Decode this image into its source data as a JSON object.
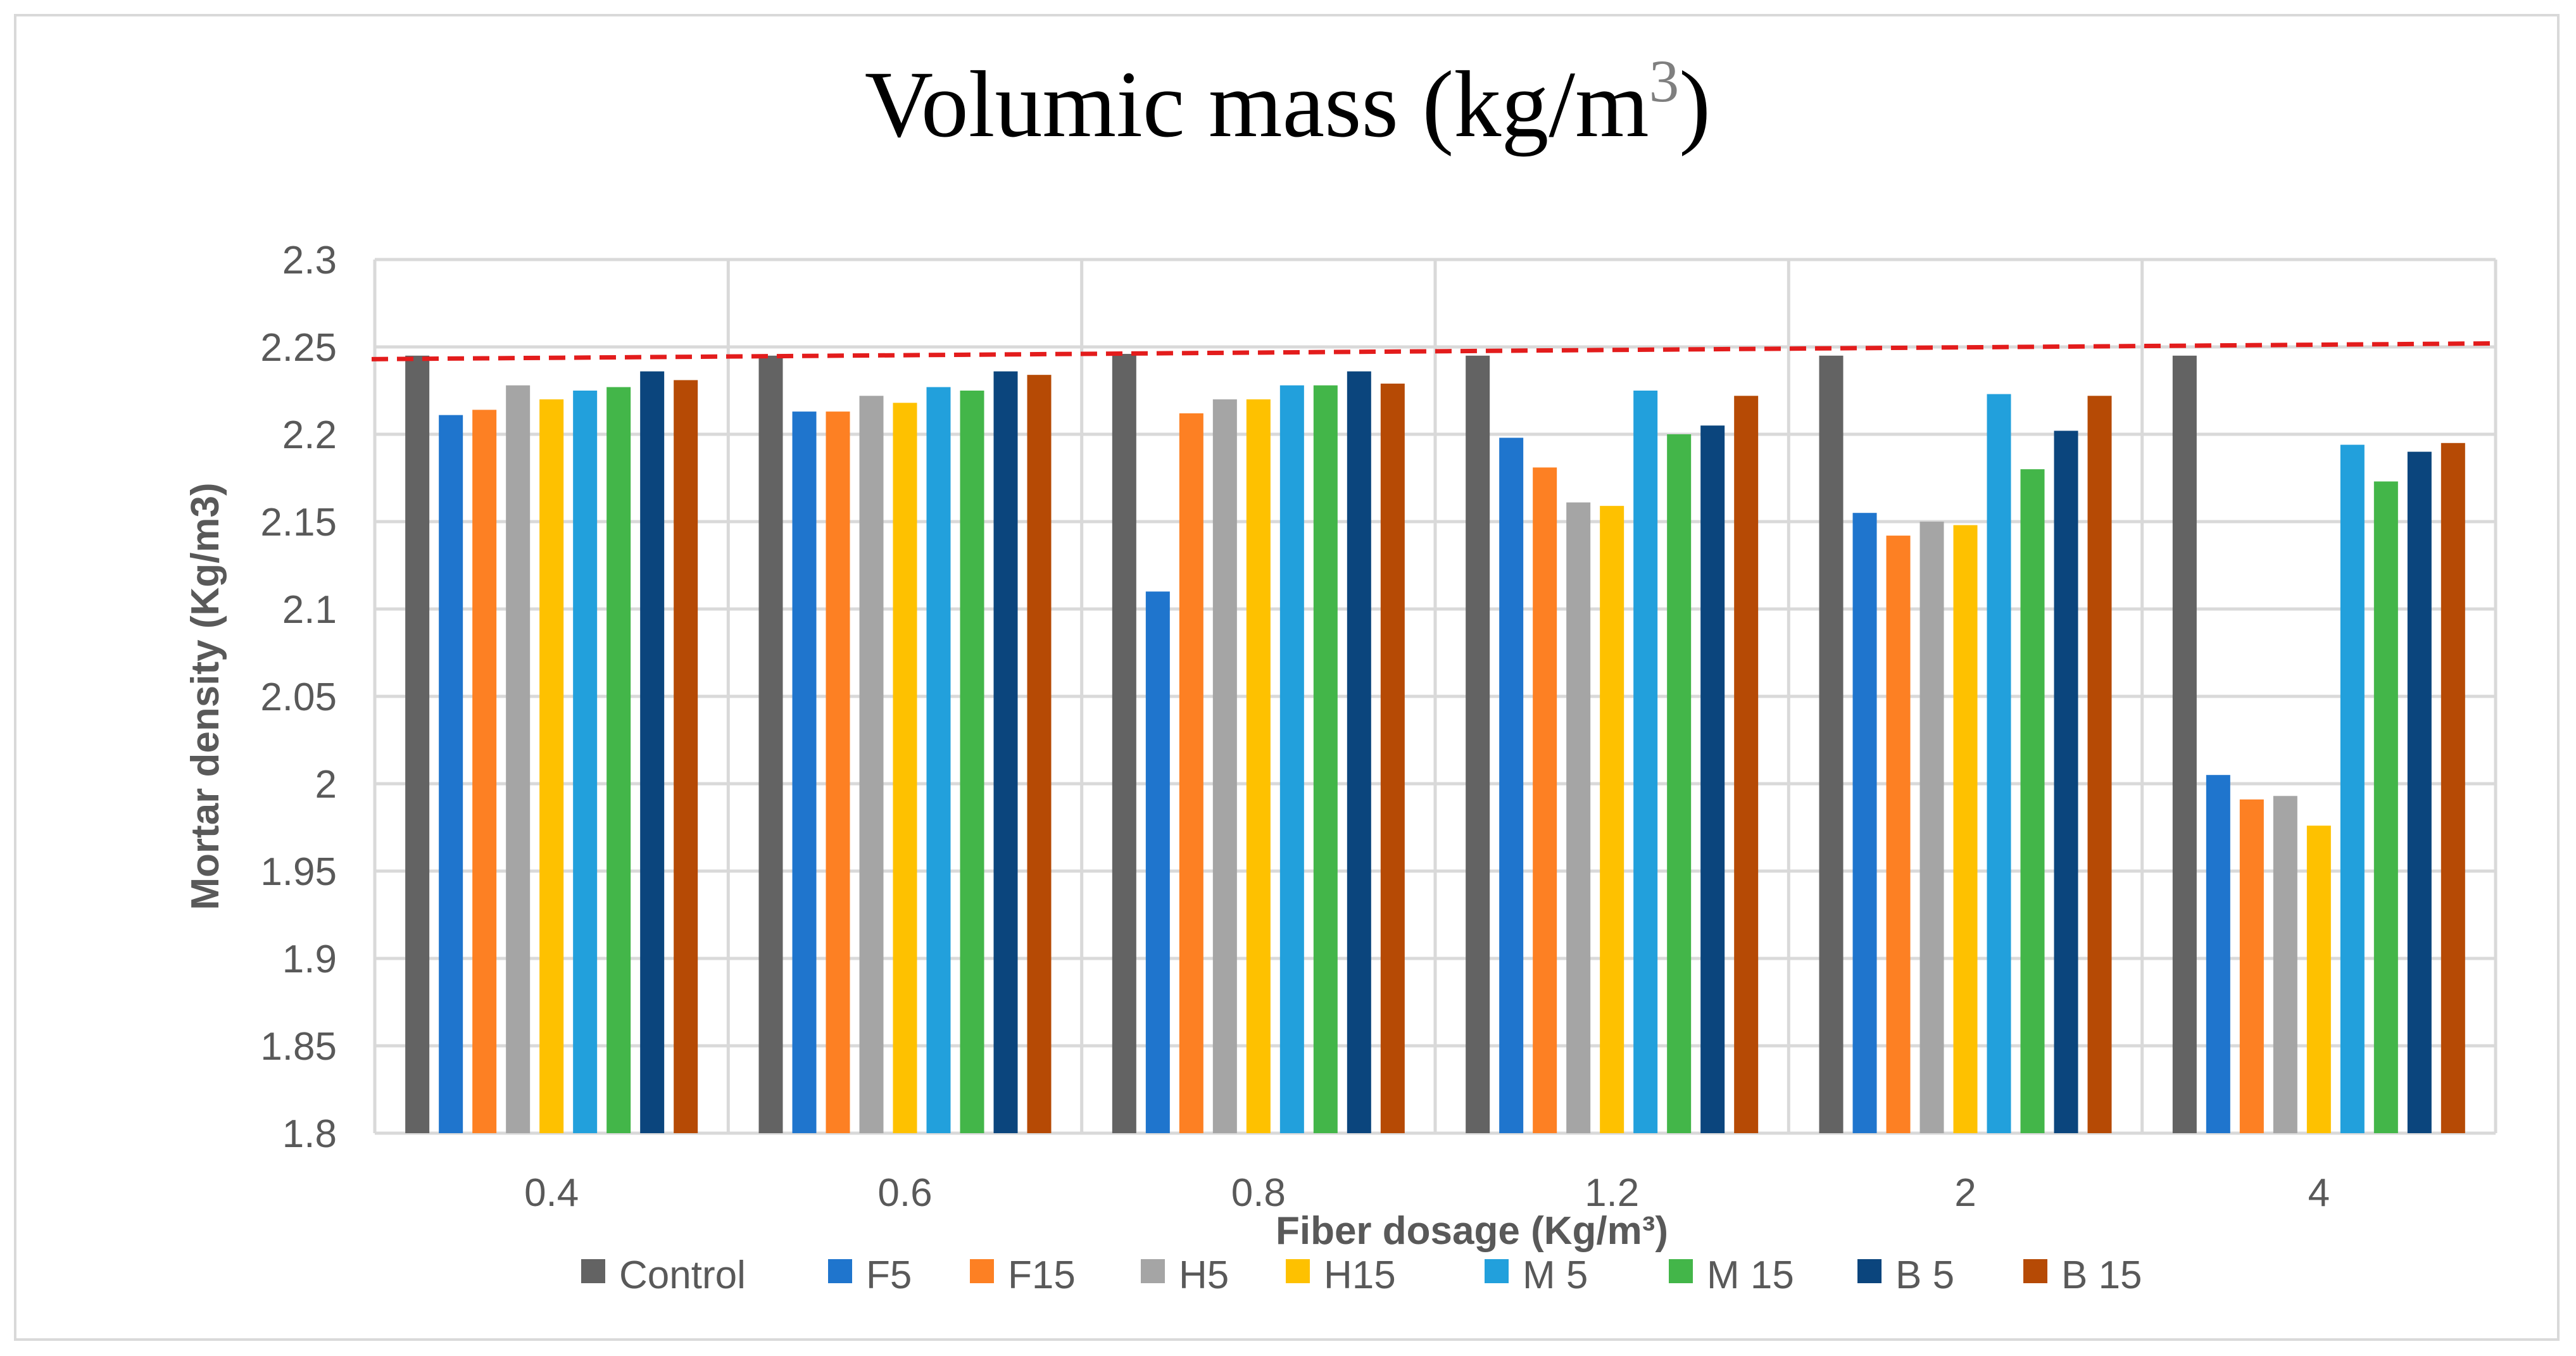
{
  "chart_data": {
    "type": "bar",
    "title": "Volumic mass (kg/m",
    "title_superscript": "3",
    "title_close": ")",
    "xlabel": "Fiber dosage (Kg/m³)",
    "ylabel": "Mortar density (Kg/m3)",
    "ylim": [
      1.8,
      2.3
    ],
    "ytick_step": 0.05,
    "yticks": [
      "1.8",
      "1.85",
      "1.9",
      "1.95",
      "2",
      "2.05",
      "2.1",
      "2.15",
      "2.2",
      "2.25",
      "2.3"
    ],
    "categories": [
      "0.4",
      "0.6",
      "0.8",
      "1.2",
      "2",
      "4"
    ],
    "grid": true,
    "legend_position": "bottom",
    "series": [
      {
        "name": "Control",
        "color": "#636363",
        "values": [
          2.245,
          2.245,
          2.246,
          2.245,
          2.245,
          2.245
        ]
      },
      {
        "name": "F5",
        "color": "#1f75cd",
        "values": [
          2.211,
          2.213,
          2.11,
          2.198,
          2.155,
          2.005
        ]
      },
      {
        "name": "F15",
        "color": "#fd8023",
        "values": [
          2.214,
          2.213,
          2.212,
          2.181,
          2.142,
          1.991
        ]
      },
      {
        "name": "H5",
        "color": "#a5a5a5",
        "values": [
          2.228,
          2.222,
          2.22,
          2.161,
          2.15,
          1.993
        ]
      },
      {
        "name": "H15",
        "color": "#fec100",
        "values": [
          2.22,
          2.218,
          2.22,
          2.159,
          2.148,
          1.976
        ]
      },
      {
        "name": "M 5",
        "color": "#22a0dc",
        "values": [
          2.225,
          2.227,
          2.228,
          2.225,
          2.223,
          2.194
        ]
      },
      {
        "name": "M 15",
        "color": "#43b649",
        "values": [
          2.227,
          2.225,
          2.228,
          2.2,
          2.18,
          2.173
        ]
      },
      {
        "name": "B 5",
        "color": "#0b457d",
        "values": [
          2.236,
          2.236,
          2.236,
          2.205,
          2.202,
          2.19
        ]
      },
      {
        "name": "B 15",
        "color": "#b64a05",
        "values": [
          2.231,
          2.234,
          2.229,
          2.222,
          2.222,
          2.195
        ]
      }
    ],
    "reference_line": {
      "style": "dashed",
      "color": "#e31c1c",
      "start_value": 2.243,
      "end_value": 2.252
    }
  }
}
